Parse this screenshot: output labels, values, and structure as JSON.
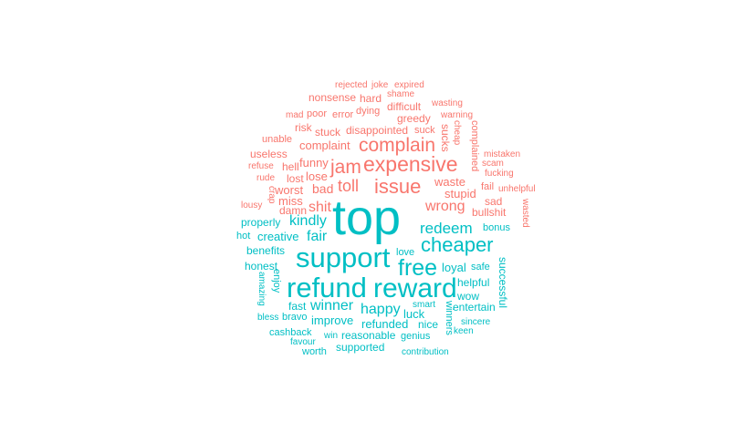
{
  "colors": {
    "negative": "#F8766D",
    "positive": "#00BFC4"
  },
  "words": {
    "rejected": "rejected",
    "joke": "joke",
    "expired": "expired",
    "nonsense": "nonsense",
    "hard": "hard",
    "shame": "shame",
    "wasting": "wasting",
    "mad": "mad",
    "poor": "poor",
    "error": "error",
    "dying": "dying",
    "difficult": "difficult",
    "warning": "warning",
    "greedy": "greedy",
    "risk": "risk",
    "stuck": "stuck",
    "disappointed": "disappointed",
    "suck": "suck",
    "sucks": "sucks",
    "cheap": "cheap",
    "complained": "complained",
    "unable": "unable",
    "complaint": "complaint",
    "complain": "complain",
    "mistaken": "mistaken",
    "useless": "useless",
    "funny": "funny",
    "jam": "jam",
    "expensive": "expensive",
    "scam": "scam",
    "refuse": "refuse",
    "hell": "hell",
    "fucking": "fucking",
    "rude": "rude",
    "lost": "lost",
    "lose": "lose",
    "toll": "toll",
    "issue": "issue",
    "waste": "waste",
    "fail": "fail",
    "unhelpful": "unhelpful",
    "crap": "crap",
    "worst": "worst",
    "bad": "bad",
    "stupid": "stupid",
    "lousy": "lousy",
    "miss": "miss",
    "shit": "shit",
    "wrong": "wrong",
    "sad": "sad",
    "damn": "damn",
    "bullshit": "bullshit",
    "wasted": "wasted",
    "top": "top",
    "properly": "properly",
    "kindly": "kindly",
    "redeem": "redeem",
    "bonus": "bonus",
    "hot": "hot",
    "creative": "creative",
    "fair": "fair",
    "cheaper": "cheaper",
    "benefits": "benefits",
    "support": "support",
    "love": "love",
    "honest": "honest",
    "enjoy": "enjoy",
    "free": "free",
    "loyal": "loyal",
    "safe": "safe",
    "successful": "successful",
    "helpful": "helpful",
    "amazing": "amazing",
    "refund": "refund",
    "reward": "reward",
    "wow": "wow",
    "fast": "fast",
    "winner": "winner",
    "smart": "smart",
    "entertain": "entertain",
    "happy": "happy",
    "luck": "luck",
    "bless": "bless",
    "bravo": "bravo",
    "improve": "improve",
    "refunded": "refunded",
    "nice": "nice",
    "winners": "winners",
    "sincere": "sincere",
    "cashback": "cashback",
    "reasonable": "reasonable",
    "genius": "genius",
    "keen": "keen",
    "favour": "favour",
    "win": "win",
    "supported": "supported",
    "worth": "worth",
    "contribution": "contribution"
  }
}
